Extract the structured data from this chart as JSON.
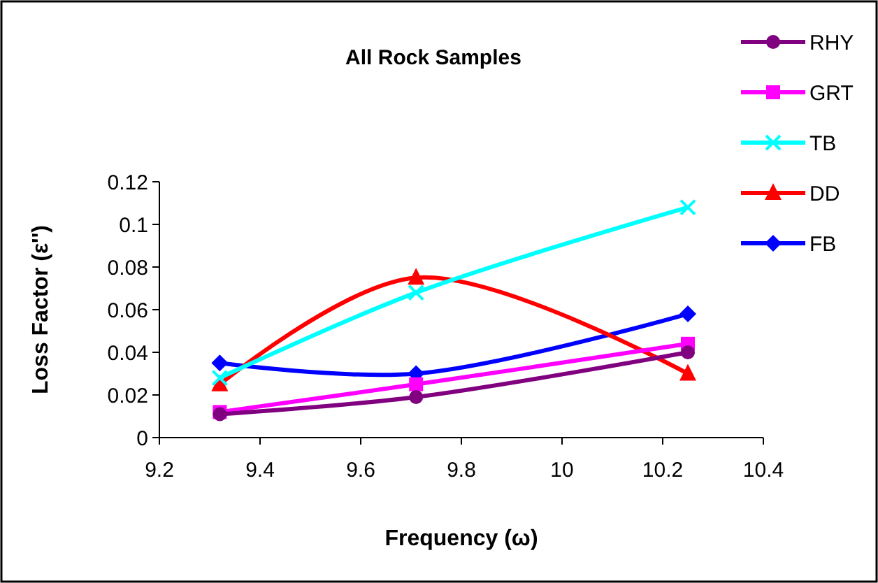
{
  "chart_data": {
    "type": "line",
    "title": "All Rock Samples",
    "xlabel": "Frequency (ω)",
    "ylabel": "Loss Factor (ε'')",
    "x": [
      9.32,
      9.71,
      10.25
    ],
    "xlim": [
      9.2,
      10.4
    ],
    "xticks": [
      9.2,
      9.4,
      9.6,
      9.8,
      10,
      10.2,
      10.4
    ],
    "ylim": [
      0,
      0.12
    ],
    "yticks": [
      0,
      0.02,
      0.04,
      0.06,
      0.08,
      0.1,
      0.12
    ],
    "grid": false,
    "legend": "right",
    "series": [
      {
        "name": "RHY",
        "color": "#800080",
        "marker": "circle",
        "values": [
          0.011,
          0.019,
          0.04
        ]
      },
      {
        "name": "GRT",
        "color": "#ff00ff",
        "marker": "square",
        "values": [
          0.012,
          0.025,
          0.044
        ]
      },
      {
        "name": "TB",
        "color": "#00ffff",
        "marker": "cross",
        "values": [
          0.028,
          0.068,
          0.108
        ]
      },
      {
        "name": "DD",
        "color": "#ff0000",
        "marker": "triangle",
        "values": [
          0.025,
          0.075,
          0.03
        ]
      },
      {
        "name": "FB",
        "color": "#0000ff",
        "marker": "diamond",
        "values": [
          0.035,
          0.03,
          0.058
        ]
      }
    ]
  }
}
